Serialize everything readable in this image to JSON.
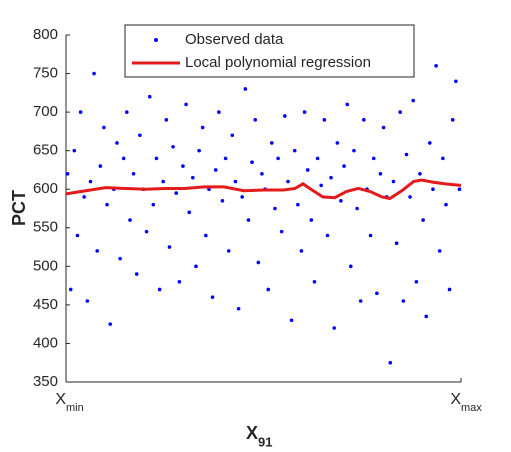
{
  "chart_data": {
    "type": "scatter",
    "xlabel": "X",
    "xlabel_sub": "91",
    "ylabel": "PCT",
    "xlim": [
      0,
      1
    ],
    "xticks": [
      {
        "value": 0,
        "label": "X",
        "label_sub": "min"
      },
      {
        "value": 1,
        "label": "X",
        "label_sub": "max"
      }
    ],
    "ylim": [
      350,
      800
    ],
    "yticks": [
      350,
      400,
      450,
      500,
      550,
      600,
      650,
      700,
      750,
      800
    ],
    "legend": "top",
    "series": [
      {
        "name": "Observed data",
        "type": "scatter",
        "color": "#0000ff",
        "x": [
          0.004,
          0.012,
          0.021,
          0.029,
          0.037,
          0.046,
          0.054,
          0.062,
          0.071,
          0.079,
          0.087,
          0.096,
          0.104,
          0.112,
          0.121,
          0.129,
          0.137,
          0.146,
          0.154,
          0.162,
          0.171,
          0.179,
          0.187,
          0.196,
          0.204,
          0.212,
          0.221,
          0.229,
          0.237,
          0.246,
          0.254,
          0.262,
          0.271,
          0.279,
          0.287,
          0.296,
          0.304,
          0.312,
          0.321,
          0.329,
          0.337,
          0.346,
          0.354,
          0.362,
          0.371,
          0.379,
          0.387,
          0.396,
          0.404,
          0.412,
          0.421,
          0.429,
          0.437,
          0.446,
          0.454,
          0.462,
          0.471,
          0.479,
          0.487,
          0.496,
          0.504,
          0.512,
          0.521,
          0.529,
          0.537,
          0.546,
          0.554,
          0.562,
          0.571,
          0.579,
          0.587,
          0.596,
          0.604,
          0.612,
          0.621,
          0.629,
          0.637,
          0.646,
          0.654,
          0.662,
          0.671,
          0.679,
          0.687,
          0.696,
          0.704,
          0.712,
          0.721,
          0.729,
          0.737,
          0.746,
          0.754,
          0.762,
          0.771,
          0.779,
          0.787,
          0.796,
          0.804,
          0.812,
          0.821,
          0.829,
          0.837,
          0.846,
          0.854,
          0.862,
          0.871,
          0.879,
          0.887,
          0.896,
          0.904,
          0.912,
          0.921,
          0.929,
          0.937,
          0.946,
          0.954,
          0.962,
          0.971,
          0.979,
          0.987,
          0.996
        ],
        "values": [
          620,
          470,
          650,
          540,
          700,
          590,
          455,
          610,
          750,
          520,
          630,
          680,
          580,
          425,
          600,
          660,
          510,
          640,
          700,
          560,
          620,
          490,
          670,
          600,
          545,
          720,
          580,
          640,
          470,
          610,
          690,
          525,
          655,
          595,
          480,
          630,
          710,
          570,
          615,
          500,
          650,
          680,
          540,
          600,
          460,
          625,
          700,
          585,
          640,
          520,
          670,
          610,
          445,
          590,
          730,
          560,
          635,
          690,
          505,
          620,
          600,
          470,
          660,
          575,
          640,
          545,
          695,
          610,
          430,
          650,
          580,
          520,
          700,
          625,
          560,
          480,
          640,
          605,
          690,
          540,
          615,
          420,
          660,
          585,
          630,
          710,
          500,
          650,
          575,
          455,
          690,
          600,
          540,
          640,
          465,
          620,
          680,
          590,
          375,
          610,
          530,
          700,
          455,
          645,
          590,
          715,
          480,
          620,
          560,
          435,
          660,
          600,
          760,
          520,
          640,
          580,
          470,
          690,
          740,
          600
        ]
      },
      {
        "name": "Local polynomial regression",
        "type": "line",
        "color": "#e41a1c",
        "x": [
          0,
          0.05,
          0.1,
          0.15,
          0.2,
          0.25,
          0.3,
          0.35,
          0.4,
          0.45,
          0.5,
          0.55,
          0.58,
          0.6,
          0.62,
          0.65,
          0.68,
          0.71,
          0.74,
          0.77,
          0.8,
          0.82,
          0.85,
          0.88,
          0.9,
          0.93,
          0.96,
          1
        ],
        "values": [
          594,
          598,
          602,
          601,
          600,
          601,
          601,
          603,
          603,
          598,
          599,
          599,
          601,
          607,
          600,
          590,
          589,
          597,
          601,
          597,
          590,
          588,
          598,
          610,
          612,
          609,
          607,
          605
        ]
      }
    ]
  }
}
